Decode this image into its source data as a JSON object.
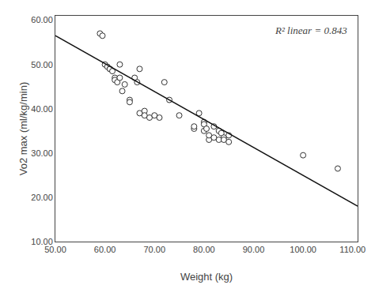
{
  "chart_data": {
    "type": "scatter",
    "xlabel": "Weight (kg)",
    "ylabel": "Vo2 max (ml/kg/min)",
    "annotation": "R² linear = 0.843",
    "xlim": [
      50,
      111
    ],
    "ylim": [
      10,
      61
    ],
    "xticks": [
      {
        "value": 50,
        "label": "50.00"
      },
      {
        "value": 60,
        "label": "60.00"
      },
      {
        "value": 70,
        "label": "70.00"
      },
      {
        "value": 80,
        "label": "80.00"
      },
      {
        "value": 90,
        "label": "90.00"
      },
      {
        "value": 100,
        "label": "100.00"
      },
      {
        "value": 110,
        "label": "110.00"
      }
    ],
    "yticks": [
      {
        "value": 10,
        "label": "10.00"
      },
      {
        "value": 20,
        "label": "20.00"
      },
      {
        "value": 30,
        "label": "30.00"
      },
      {
        "value": 40,
        "label": "40.00"
      },
      {
        "value": 50,
        "label": "50.00"
      },
      {
        "value": 60,
        "label": "60.00"
      }
    ],
    "grid": false,
    "series": [
      {
        "type": "scatter",
        "marker": "open_circle",
        "color": "#333333",
        "x": [
          59,
          59.5,
          60,
          60.5,
          61,
          61,
          61.5,
          62,
          62,
          62.5,
          63,
          63,
          63.5,
          64,
          65,
          65,
          66,
          66.5,
          67,
          67,
          68,
          68,
          69,
          70,
          71,
          72,
          73,
          75,
          78,
          78,
          79,
          80,
          80,
          80,
          80.5,
          81,
          81,
          82,
          82,
          83,
          83,
          83.5,
          84,
          84,
          85,
          85,
          100,
          107
        ],
        "values": [
          57,
          56.5,
          50,
          49.5,
          49,
          49,
          48.5,
          47,
          46.5,
          46,
          50,
          47,
          44,
          45.5,
          42,
          41.5,
          47,
          46,
          49,
          39,
          39.5,
          38.5,
          38,
          38.5,
          38,
          46,
          42,
          38.5,
          35.5,
          36,
          39,
          37,
          36.5,
          35,
          35.5,
          33,
          34,
          33.5,
          36,
          33,
          35,
          34.5,
          33.5,
          33,
          34,
          32.5,
          29.5,
          26.5
        ]
      },
      {
        "type": "line",
        "color": "#111111",
        "x": [
          50,
          111
        ],
        "values": [
          56.5,
          18.0
        ]
      }
    ]
  }
}
